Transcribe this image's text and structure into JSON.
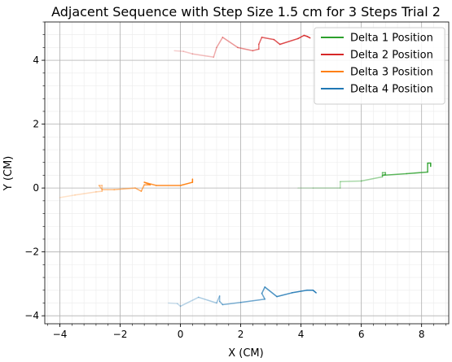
{
  "chart_data": {
    "type": "line",
    "title": "Adjacent Sequence with Step Size 1.5 cm for 3 Steps Trial 2",
    "xlabel": "X (CM)",
    "ylabel": "Y (CM)",
    "xlim": [
      -4.5,
      8.9
    ],
    "ylim": [
      -4.25,
      5.2
    ],
    "x_ticks": [
      -4,
      -2,
      0,
      2,
      4,
      6,
      8
    ],
    "y_ticks": [
      -4,
      -2,
      0,
      2,
      4
    ],
    "x_tick_labels": [
      "−4",
      "−2",
      "0",
      "2",
      "4",
      "6",
      "8"
    ],
    "y_tick_labels": [
      "−4",
      "−2",
      "0",
      "2",
      "4"
    ],
    "grid": true,
    "minor_grid": true,
    "legend_position": "upper right",
    "series": [
      {
        "name": "Delta 1 Position",
        "color": "#2ca02c",
        "points": [
          [
            3.9,
            0.0
          ],
          [
            4.4,
            0.0
          ],
          [
            5.3,
            0.0
          ],
          [
            5.3,
            0.2
          ],
          [
            6.0,
            0.22
          ],
          [
            6.7,
            0.35
          ],
          [
            6.7,
            0.48
          ],
          [
            6.8,
            0.48
          ],
          [
            6.8,
            0.42
          ],
          [
            6.7,
            0.4
          ],
          [
            7.5,
            0.45
          ],
          [
            8.2,
            0.5
          ],
          [
            8.2,
            0.78
          ],
          [
            8.3,
            0.78
          ],
          [
            8.3,
            0.68
          ]
        ]
      },
      {
        "name": "Delta 2 Position",
        "color": "#d62728",
        "points": [
          [
            -0.2,
            4.3
          ],
          [
            0.1,
            4.28
          ],
          [
            0.4,
            4.2
          ],
          [
            1.1,
            4.1
          ],
          [
            1.2,
            4.4
          ],
          [
            1.4,
            4.72
          ],
          [
            1.9,
            4.4
          ],
          [
            2.4,
            4.3
          ],
          [
            2.6,
            4.35
          ],
          [
            2.6,
            4.5
          ],
          [
            2.7,
            4.72
          ],
          [
            3.1,
            4.65
          ],
          [
            3.3,
            4.5
          ],
          [
            3.9,
            4.68
          ],
          [
            4.1,
            4.78
          ],
          [
            4.2,
            4.75
          ],
          [
            4.3,
            4.7
          ]
        ]
      },
      {
        "name": "Delta 3 Position",
        "color": "#ff7f0e",
        "points": [
          [
            -4.0,
            -0.3
          ],
          [
            -3.5,
            -0.22
          ],
          [
            -2.8,
            -0.12
          ],
          [
            -2.6,
            -0.1
          ],
          [
            -2.6,
            0.08
          ],
          [
            -2.7,
            0.08
          ],
          [
            -2.6,
            -0.05
          ],
          [
            -2.2,
            -0.05
          ],
          [
            -1.5,
            0.0
          ],
          [
            -1.3,
            -0.1
          ],
          [
            -1.2,
            0.1
          ],
          [
            -1.0,
            0.1
          ],
          [
            -1.2,
            0.18
          ],
          [
            -0.8,
            0.08
          ],
          [
            0.0,
            0.08
          ],
          [
            0.4,
            0.18
          ],
          [
            0.4,
            0.28
          ]
        ]
      },
      {
        "name": "Delta 4 Position",
        "color": "#1f77b4",
        "points": [
          [
            -0.4,
            -3.6
          ],
          [
            -0.1,
            -3.62
          ],
          [
            0.0,
            -3.7
          ],
          [
            0.6,
            -3.42
          ],
          [
            1.2,
            -3.6
          ],
          [
            1.3,
            -3.38
          ],
          [
            1.3,
            -3.55
          ],
          [
            1.4,
            -3.65
          ],
          [
            2.0,
            -3.58
          ],
          [
            2.8,
            -3.48
          ],
          [
            2.7,
            -3.3
          ],
          [
            2.8,
            -3.1
          ],
          [
            3.2,
            -3.4
          ],
          [
            3.7,
            -3.28
          ],
          [
            4.2,
            -3.2
          ],
          [
            4.4,
            -3.2
          ],
          [
            4.5,
            -3.28
          ]
        ]
      }
    ]
  }
}
